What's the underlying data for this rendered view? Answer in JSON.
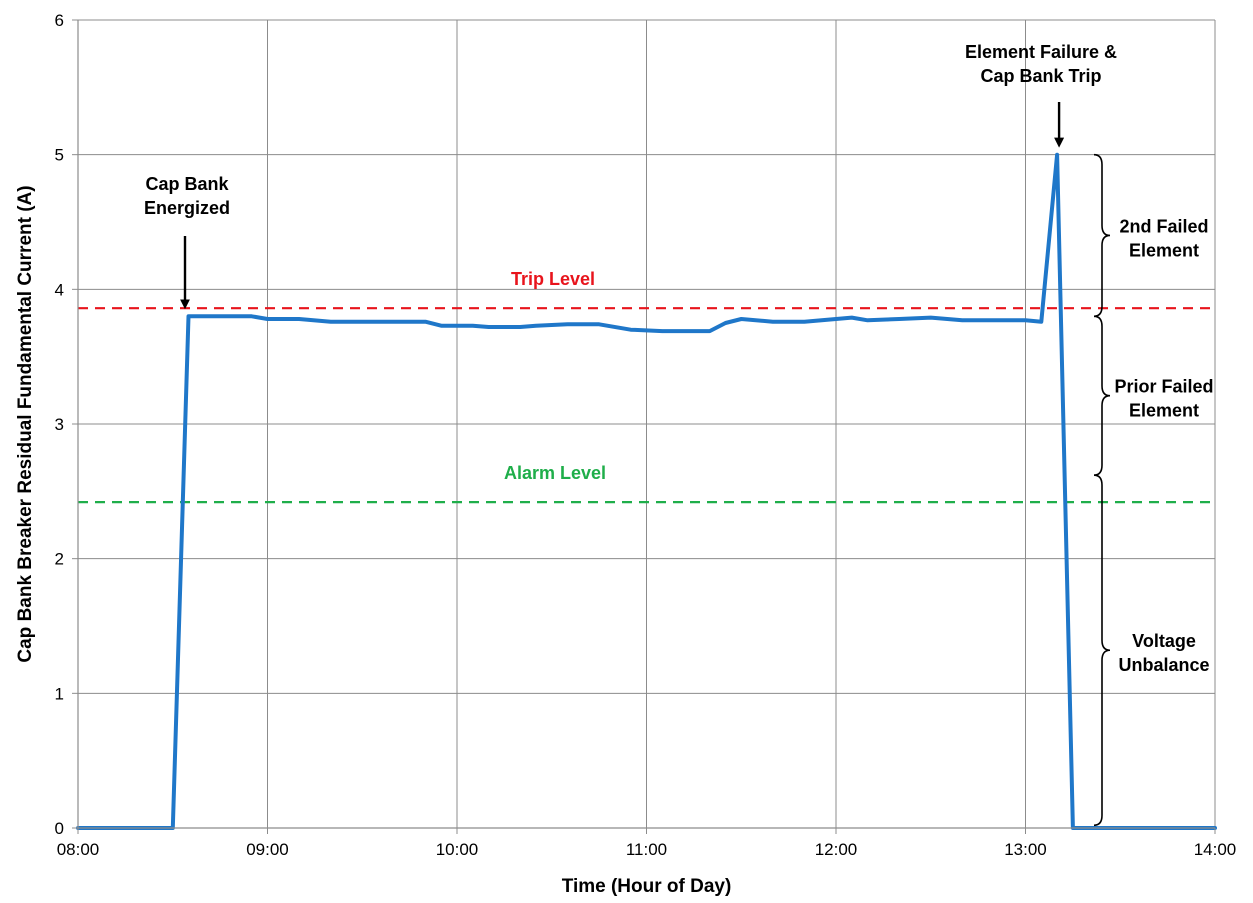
{
  "chart_data": {
    "type": "line",
    "title": "",
    "xlabel": "Time (Hour of Day)",
    "ylabel": "Cap Bank Breaker Residual Fundamental Current (A)",
    "xlim": [
      "08:00",
      "14:00"
    ],
    "ylim": [
      0,
      6
    ],
    "grid": true,
    "x_ticks": [
      "08:00",
      "09:00",
      "10:00",
      "11:00",
      "12:00",
      "13:00",
      "14:00"
    ],
    "y_ticks": [
      0,
      1,
      2,
      3,
      4,
      5,
      6
    ],
    "series": [
      {
        "color": "#1f77c9",
        "points": [
          {
            "x": "08:00",
            "y": 0
          },
          {
            "x": "08:30",
            "y": 0
          },
          {
            "x": "08:35",
            "y": 3.8
          },
          {
            "x": "08:55",
            "y": 3.8
          },
          {
            "x": "09:00",
            "y": 3.78
          },
          {
            "x": "09:10",
            "y": 3.78
          },
          {
            "x": "09:20",
            "y": 3.76
          },
          {
            "x": "09:50",
            "y": 3.76
          },
          {
            "x": "09:55",
            "y": 3.73
          },
          {
            "x": "10:05",
            "y": 3.73
          },
          {
            "x": "10:10",
            "y": 3.72
          },
          {
            "x": "10:20",
            "y": 3.72
          },
          {
            "x": "10:25",
            "y": 3.73
          },
          {
            "x": "10:35",
            "y": 3.74
          },
          {
            "x": "10:45",
            "y": 3.74
          },
          {
            "x": "10:55",
            "y": 3.7
          },
          {
            "x": "11:05",
            "y": 3.69
          },
          {
            "x": "11:20",
            "y": 3.69
          },
          {
            "x": "11:25",
            "y": 3.75
          },
          {
            "x": "11:30",
            "y": 3.78
          },
          {
            "x": "11:40",
            "y": 3.76
          },
          {
            "x": "11:50",
            "y": 3.76
          },
          {
            "x": "12:00",
            "y": 3.78
          },
          {
            "x": "12:05",
            "y": 3.79
          },
          {
            "x": "12:10",
            "y": 3.77
          },
          {
            "x": "12:20",
            "y": 3.78
          },
          {
            "x": "12:30",
            "y": 3.79
          },
          {
            "x": "12:40",
            "y": 3.77
          },
          {
            "x": "12:50",
            "y": 3.77
          },
          {
            "x": "13:00",
            "y": 3.77
          },
          {
            "x": "13:05",
            "y": 3.76
          },
          {
            "x": "13:10",
            "y": 5.0
          },
          {
            "x": "13:15",
            "y": 0
          },
          {
            "x": "14:00",
            "y": 0
          }
        ]
      }
    ],
    "reference_lines": [
      {
        "label": "Trip Level",
        "y": 3.86,
        "color": "#e8141c",
        "style": "dashed"
      },
      {
        "label": "Alarm Level",
        "y": 2.42,
        "color": "#1fae4a",
        "style": "dashed"
      }
    ],
    "annotations": [
      {
        "lines": [
          "Cap Bank",
          "Energized"
        ],
        "arrow_to": {
          "x": "08:35",
          "y": 3.8
        }
      },
      {
        "lines": [
          "Element Failure &",
          "Cap Bank Trip"
        ],
        "arrow_to": {
          "x": "13:10",
          "y": 5.0
        }
      }
    ],
    "brackets": [
      {
        "lines": [
          "2nd Failed",
          "Element"
        ],
        "from": 3.8,
        "to": 5.0
      },
      {
        "lines": [
          "Prior Failed",
          "Element"
        ],
        "from": 2.62,
        "to": 3.8
      },
      {
        "lines": [
          "Voltage",
          "Unbalance"
        ],
        "from": 0.02,
        "to": 2.62
      }
    ]
  }
}
